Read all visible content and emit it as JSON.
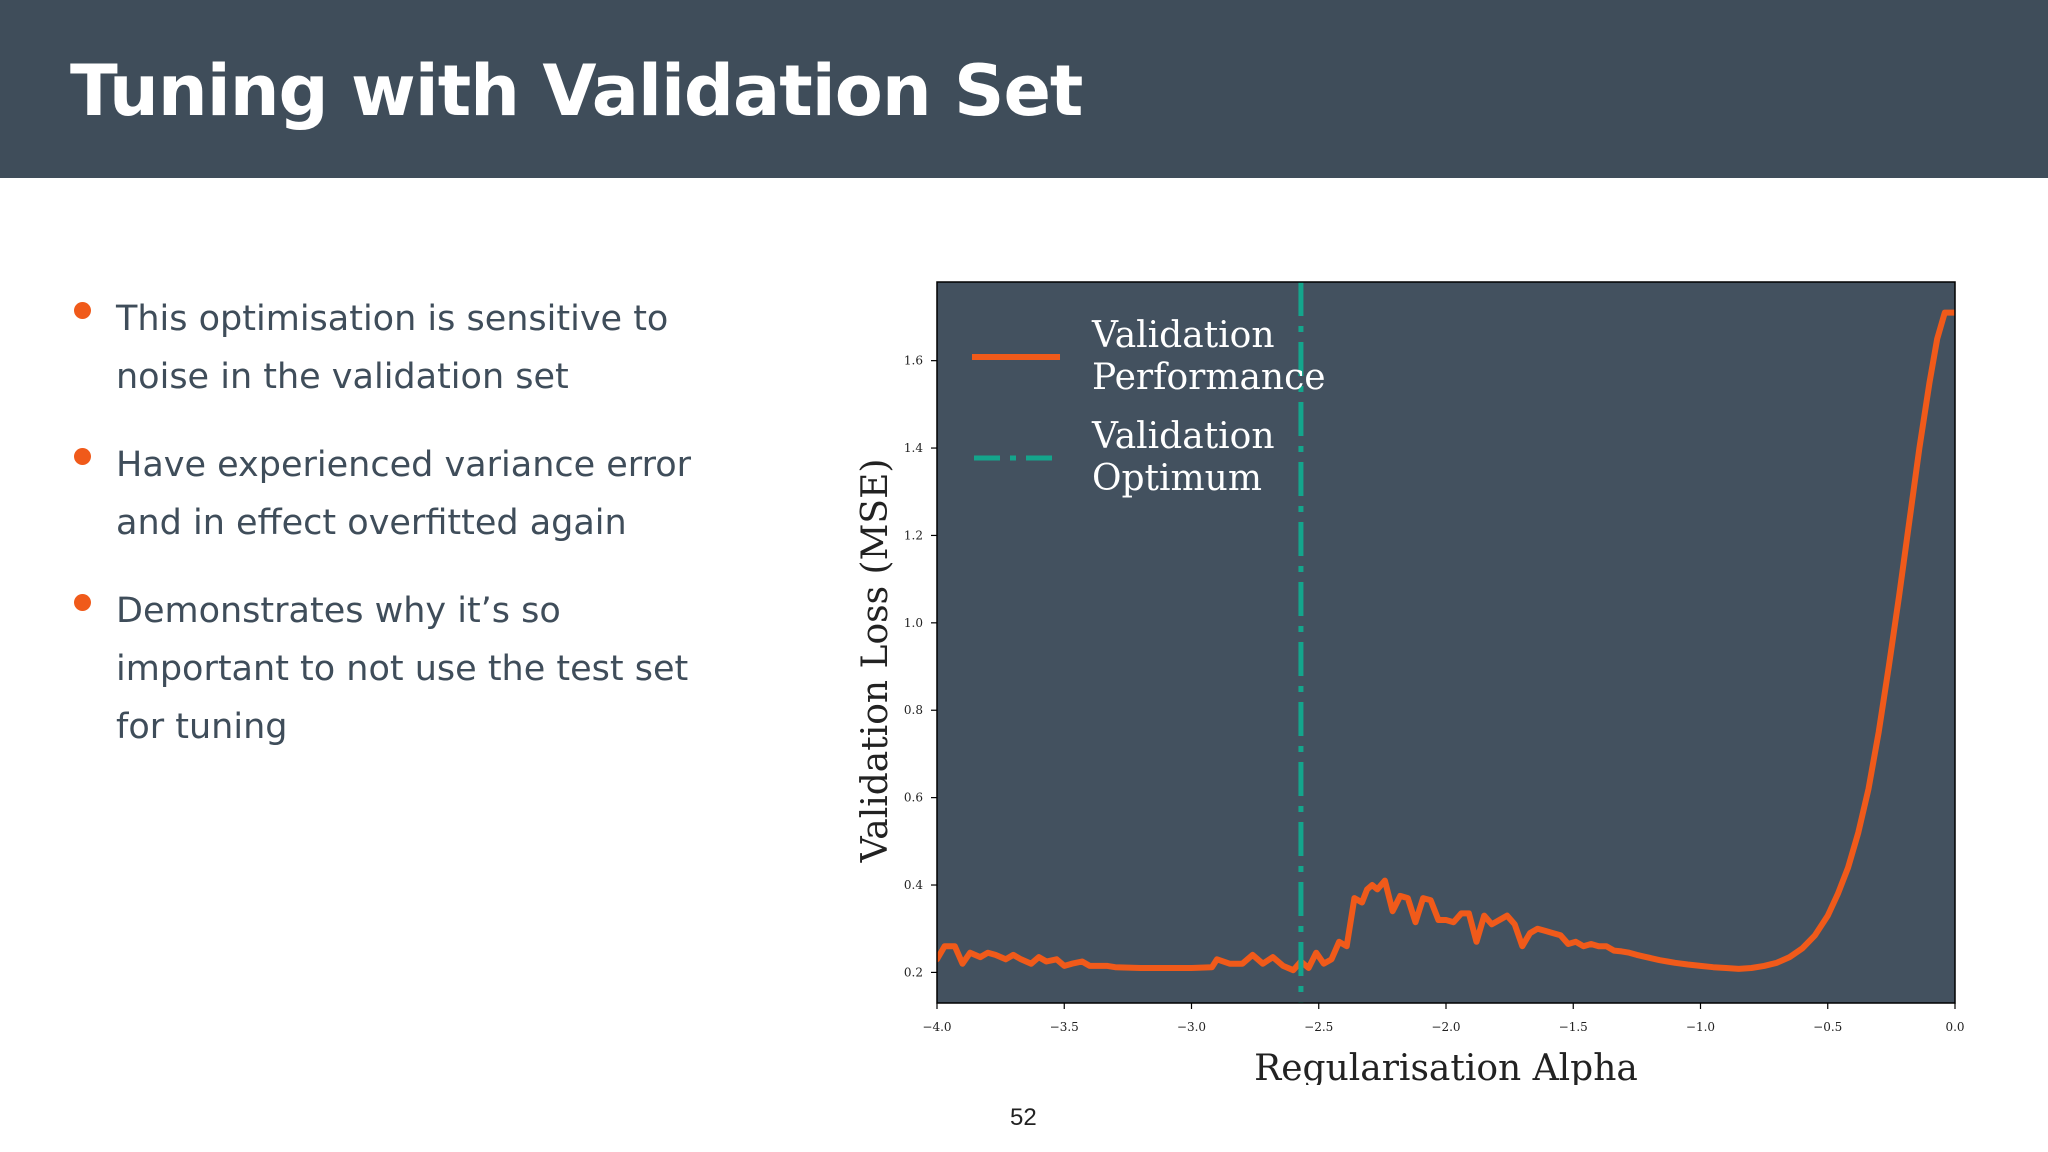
{
  "slide": {
    "title": "Tuning with Validation Set",
    "page_number": "52"
  },
  "bullets": [
    {
      "text": "This optimisation is sensitive to noise in the validation set"
    },
    {
      "text": "Have experienced variance error and in effect overfitted again"
    },
    {
      "text": "Demonstrates why it’s so important to not use the test set for tuning"
    }
  ],
  "colors": {
    "header_bg": "#3f4d5a",
    "plot_bg": "#43515f",
    "accent_orange": "#f05a1a",
    "optimum_teal": "#14a58c",
    "text": "#3f4d5a"
  },
  "chart_data": {
    "type": "line",
    "xlabel": "Regularisation Alpha",
    "ylabel": "Validation Loss (MSE)",
    "xlim": [
      -4.0,
      0.0
    ],
    "ylim": [
      0.13,
      1.78
    ],
    "xticks": [
      -4.0,
      -3.5,
      -3.0,
      -2.5,
      -2.0,
      -1.5,
      -1.0,
      -0.5,
      0.0
    ],
    "xtick_labels": [
      "−4.0",
      "−3.5",
      "−3.0",
      "−2.5",
      "−2.0",
      "−1.5",
      "−1.0",
      "−0.5",
      "0.0"
    ],
    "yticks": [
      0.2,
      0.4,
      0.6,
      0.8,
      1.0,
      1.2,
      1.4,
      1.6
    ],
    "ytick_labels": [
      "0.2",
      "0.4",
      "0.6",
      "0.8",
      "1.0",
      "1.2",
      "1.4",
      "1.6"
    ],
    "grid": false,
    "legend_position": "top-left",
    "series": [
      {
        "name": "Validation Performance",
        "style": "solid",
        "color": "#f05a1a",
        "x": [
          -4.0,
          -3.97,
          -3.93,
          -3.9,
          -3.87,
          -3.83,
          -3.8,
          -3.77,
          -3.73,
          -3.7,
          -3.67,
          -3.63,
          -3.6,
          -3.57,
          -3.53,
          -3.5,
          -3.47,
          -3.43,
          -3.4,
          -3.37,
          -3.33,
          -3.3,
          -3.2,
          -3.1,
          -3.0,
          -2.92,
          -2.9,
          -2.85,
          -2.8,
          -2.76,
          -2.72,
          -2.68,
          -2.64,
          -2.6,
          -2.57,
          -2.54,
          -2.51,
          -2.48,
          -2.45,
          -2.42,
          -2.39,
          -2.36,
          -2.33,
          -2.31,
          -2.29,
          -2.27,
          -2.24,
          -2.21,
          -2.18,
          -2.15,
          -2.12,
          -2.09,
          -2.06,
          -2.03,
          -2.0,
          -1.97,
          -1.94,
          -1.91,
          -1.88,
          -1.85,
          -1.82,
          -1.79,
          -1.76,
          -1.73,
          -1.7,
          -1.67,
          -1.64,
          -1.61,
          -1.58,
          -1.55,
          -1.52,
          -1.49,
          -1.46,
          -1.43,
          -1.4,
          -1.37,
          -1.34,
          -1.31,
          -1.28,
          -1.25,
          -1.22,
          -1.19,
          -1.16,
          -1.13,
          -1.1,
          -1.05,
          -1.0,
          -0.95,
          -0.9,
          -0.85,
          -0.8,
          -0.75,
          -0.7,
          -0.65,
          -0.6,
          -0.55,
          -0.5,
          -0.46,
          -0.42,
          -0.38,
          -0.34,
          -0.3,
          -0.26,
          -0.22,
          -0.18,
          -0.14,
          -0.1,
          -0.07,
          -0.04,
          -0.02,
          0.0
        ],
        "y": [
          0.23,
          0.26,
          0.26,
          0.22,
          0.245,
          0.235,
          0.245,
          0.24,
          0.23,
          0.24,
          0.23,
          0.22,
          0.235,
          0.225,
          0.23,
          0.215,
          0.22,
          0.225,
          0.215,
          0.215,
          0.215,
          0.212,
          0.21,
          0.21,
          0.21,
          0.212,
          0.23,
          0.22,
          0.22,
          0.24,
          0.22,
          0.235,
          0.215,
          0.205,
          0.225,
          0.21,
          0.245,
          0.22,
          0.23,
          0.27,
          0.26,
          0.37,
          0.36,
          0.39,
          0.4,
          0.39,
          0.41,
          0.34,
          0.375,
          0.37,
          0.315,
          0.37,
          0.365,
          0.32,
          0.32,
          0.315,
          0.335,
          0.335,
          0.27,
          0.33,
          0.31,
          0.32,
          0.33,
          0.31,
          0.26,
          0.29,
          0.3,
          0.295,
          0.29,
          0.285,
          0.265,
          0.27,
          0.26,
          0.265,
          0.26,
          0.26,
          0.25,
          0.248,
          0.245,
          0.24,
          0.236,
          0.232,
          0.228,
          0.225,
          0.222,
          0.218,
          0.215,
          0.212,
          0.21,
          0.208,
          0.21,
          0.215,
          0.222,
          0.235,
          0.255,
          0.285,
          0.33,
          0.38,
          0.44,
          0.52,
          0.62,
          0.75,
          0.9,
          1.06,
          1.23,
          1.4,
          1.55,
          1.65,
          1.71,
          1.71,
          1.71
        ]
      },
      {
        "name": "Validation Optimum",
        "style": "dashdot",
        "color": "#14a58c",
        "x_value": -2.57
      }
    ]
  }
}
